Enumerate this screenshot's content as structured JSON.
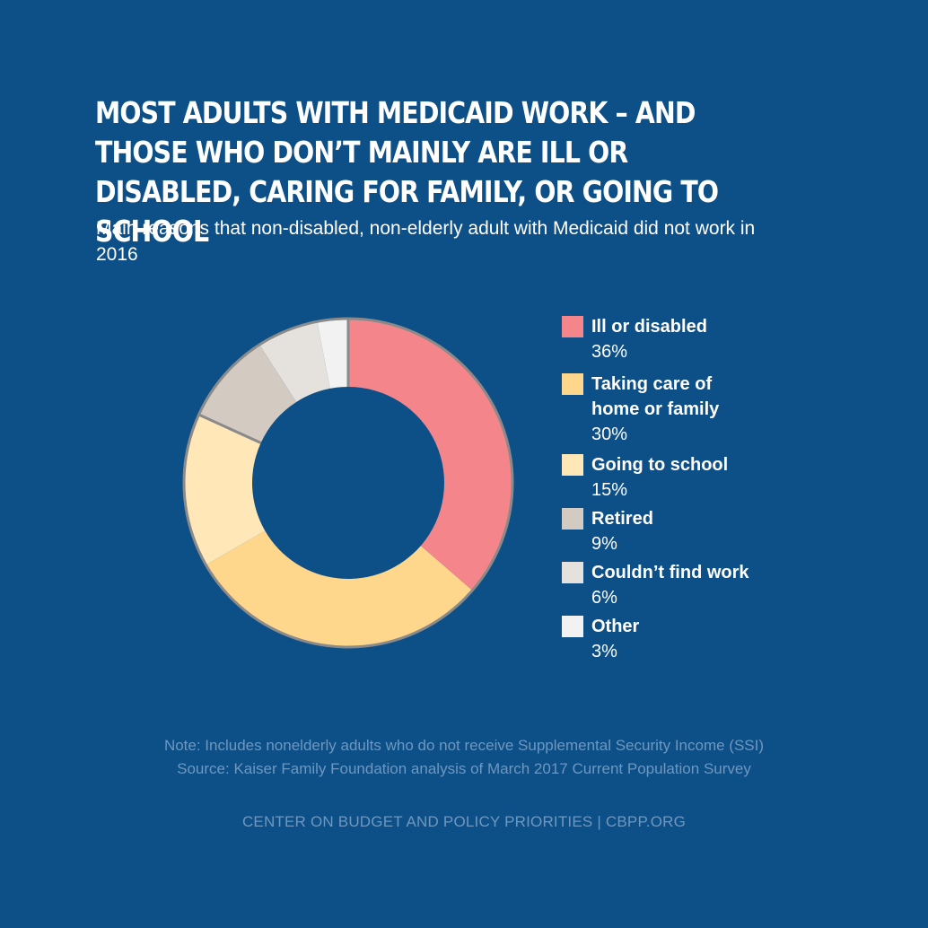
{
  "chart_data": {
    "type": "pie",
    "title": "Most adults with Medicaid work – and those who don’t mainly are ill or disabled, caring for family, or going to school",
    "subtitle": "Main reasons that non-disabled, non-elderly adult with Medicaid did not work in 2016",
    "slices": [
      {
        "label": "Ill or disabled",
        "value": 36,
        "display": "36%",
        "color": "#f4858a"
      },
      {
        "label": "Taking care of home or family",
        "value": 30,
        "display": "30%",
        "color": "#ffd78c"
      },
      {
        "label": "Going to school",
        "value": 15,
        "display": "15%",
        "color": "#ffe7b7"
      },
      {
        "label": "Retired",
        "value": 9,
        "display": "9%",
        "color": "#d3cbc1"
      },
      {
        "label": "Couldn’t find work",
        "value": 6,
        "display": "6%",
        "color": "#e5e1dc"
      },
      {
        "label": "Other",
        "value": 3,
        "display": "3%",
        "color": "#f2f2f2"
      }
    ],
    "legend_position": "right",
    "hole": "donut"
  },
  "notes": {
    "note": "Note: Includes nonelderly adults who do not receive Supplemental Security Income (SSI)",
    "source": "Source: Kaiser Family Foundation analysis of March 2017 Current Population Survey"
  },
  "footer": "CENTER ON BUDGET AND POLICY PRIORITIES | CBPP.ORG",
  "colors": {
    "background": "#0d4f87",
    "muted_text": "#6f97bf",
    "slice_border": "#8a8a8a"
  }
}
